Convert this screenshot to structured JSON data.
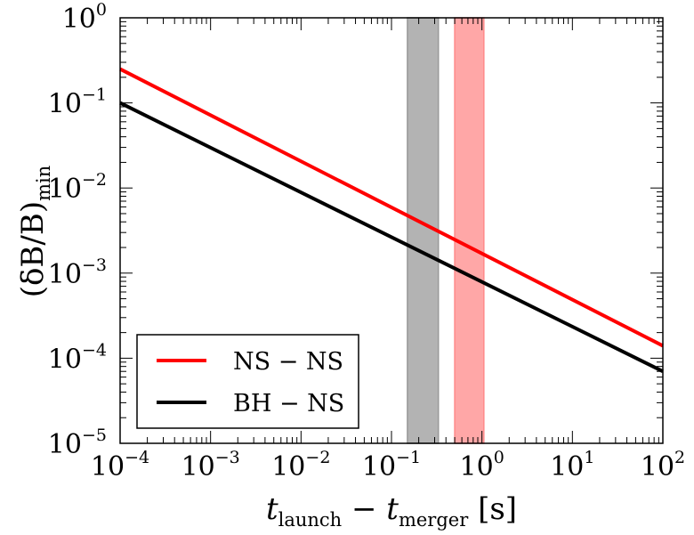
{
  "chart_data": {
    "type": "line",
    "x_scale": "log",
    "y_scale": "log",
    "xlim": [
      0.0001,
      100
    ],
    "ylim": [
      1e-05,
      1
    ],
    "x_ticks": [
      {
        "base": "10",
        "exp": "−4",
        "value": 0.0001
      },
      {
        "base": "10",
        "exp": "−3",
        "value": 0.001
      },
      {
        "base": "10",
        "exp": "−2",
        "value": 0.01
      },
      {
        "base": "10",
        "exp": "−1",
        "value": 0.1
      },
      {
        "base": "10",
        "exp": "0",
        "value": 1
      },
      {
        "base": "10",
        "exp": "1",
        "value": 10
      },
      {
        "base": "10",
        "exp": "2",
        "value": 100
      }
    ],
    "y_ticks": [
      {
        "base": "10",
        "exp": "0",
        "value": 1
      },
      {
        "base": "10",
        "exp": "−1",
        "value": 0.1
      },
      {
        "base": "10",
        "exp": "−2",
        "value": 0.01
      },
      {
        "base": "10",
        "exp": "−3",
        "value": 0.001
      },
      {
        "base": "10",
        "exp": "−4",
        "value": 0.0001
      },
      {
        "base": "10",
        "exp": "−5",
        "value": 1e-05
      }
    ],
    "xlabel": {
      "t1": "t",
      "sub1": "launch",
      "minus": " − ",
      "t2": "t",
      "sub2": "merger",
      "unit": " [s]"
    },
    "ylabel": {
      "main": "(δB/B)",
      "sub": "min"
    },
    "series": [
      {
        "name": "NS − NS",
        "color": "#ff0000",
        "x": [
          0.0001,
          100
        ],
        "y": [
          0.25,
          0.00014
        ]
      },
      {
        "name": "BH − NS",
        "color": "#000000",
        "x": [
          0.0001,
          100
        ],
        "y": [
          0.1,
          7e-05
        ]
      }
    ],
    "bands": [
      {
        "name": "BH-NS band",
        "color": "#999999",
        "x_range": [
          0.15,
          0.33
        ]
      },
      {
        "name": "NS-NS band",
        "color": "#ff8a8a",
        "x_range": [
          0.5,
          1.05
        ]
      }
    ],
    "legend": {
      "location": "bottom-left",
      "entries": [
        "NS − NS",
        "BH − NS"
      ]
    }
  }
}
